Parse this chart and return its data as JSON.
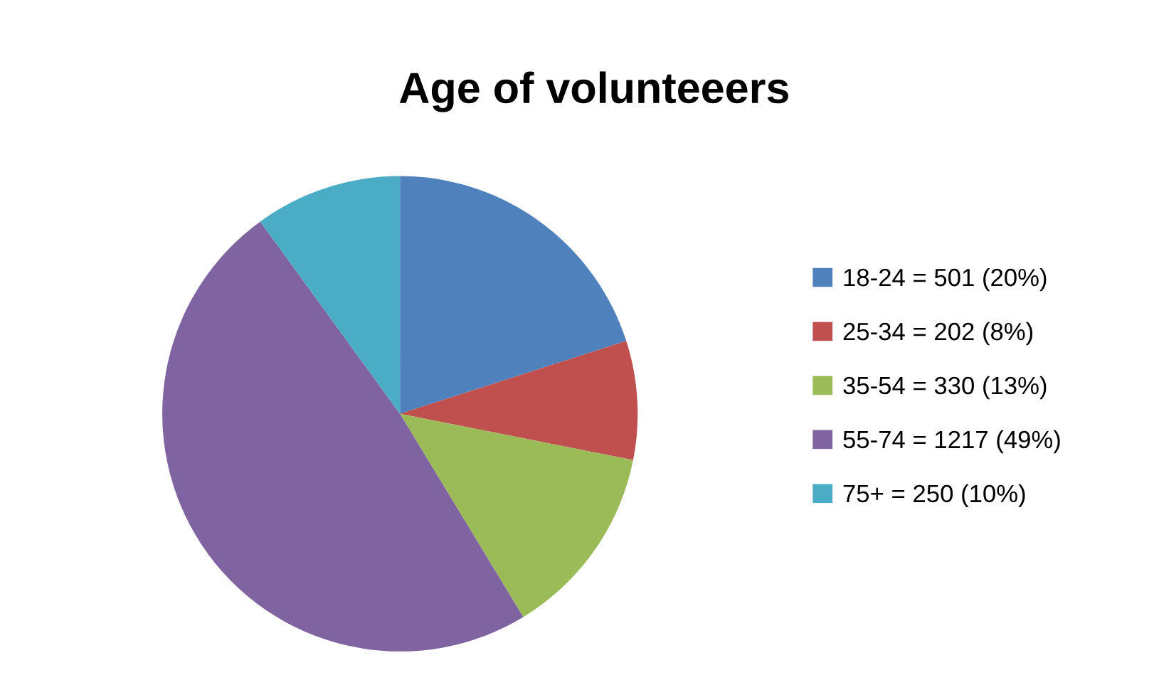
{
  "chart_data": {
    "type": "pie",
    "title": "Age of volunteeers",
    "categories": [
      "18-24 = 501 (20%)",
      "25-34 = 202 (8%)",
      "35-54 = 330 (13%)",
      "55-74 = 1217 (49%)",
      "75+ = 250 (10%)"
    ],
    "values": [
      501,
      202,
      330,
      1217,
      250
    ],
    "colors": [
      "#4f81bd",
      "#c0504d",
      "#9bbb59",
      "#8064a2",
      "#4bacc6"
    ],
    "legend": "right"
  }
}
